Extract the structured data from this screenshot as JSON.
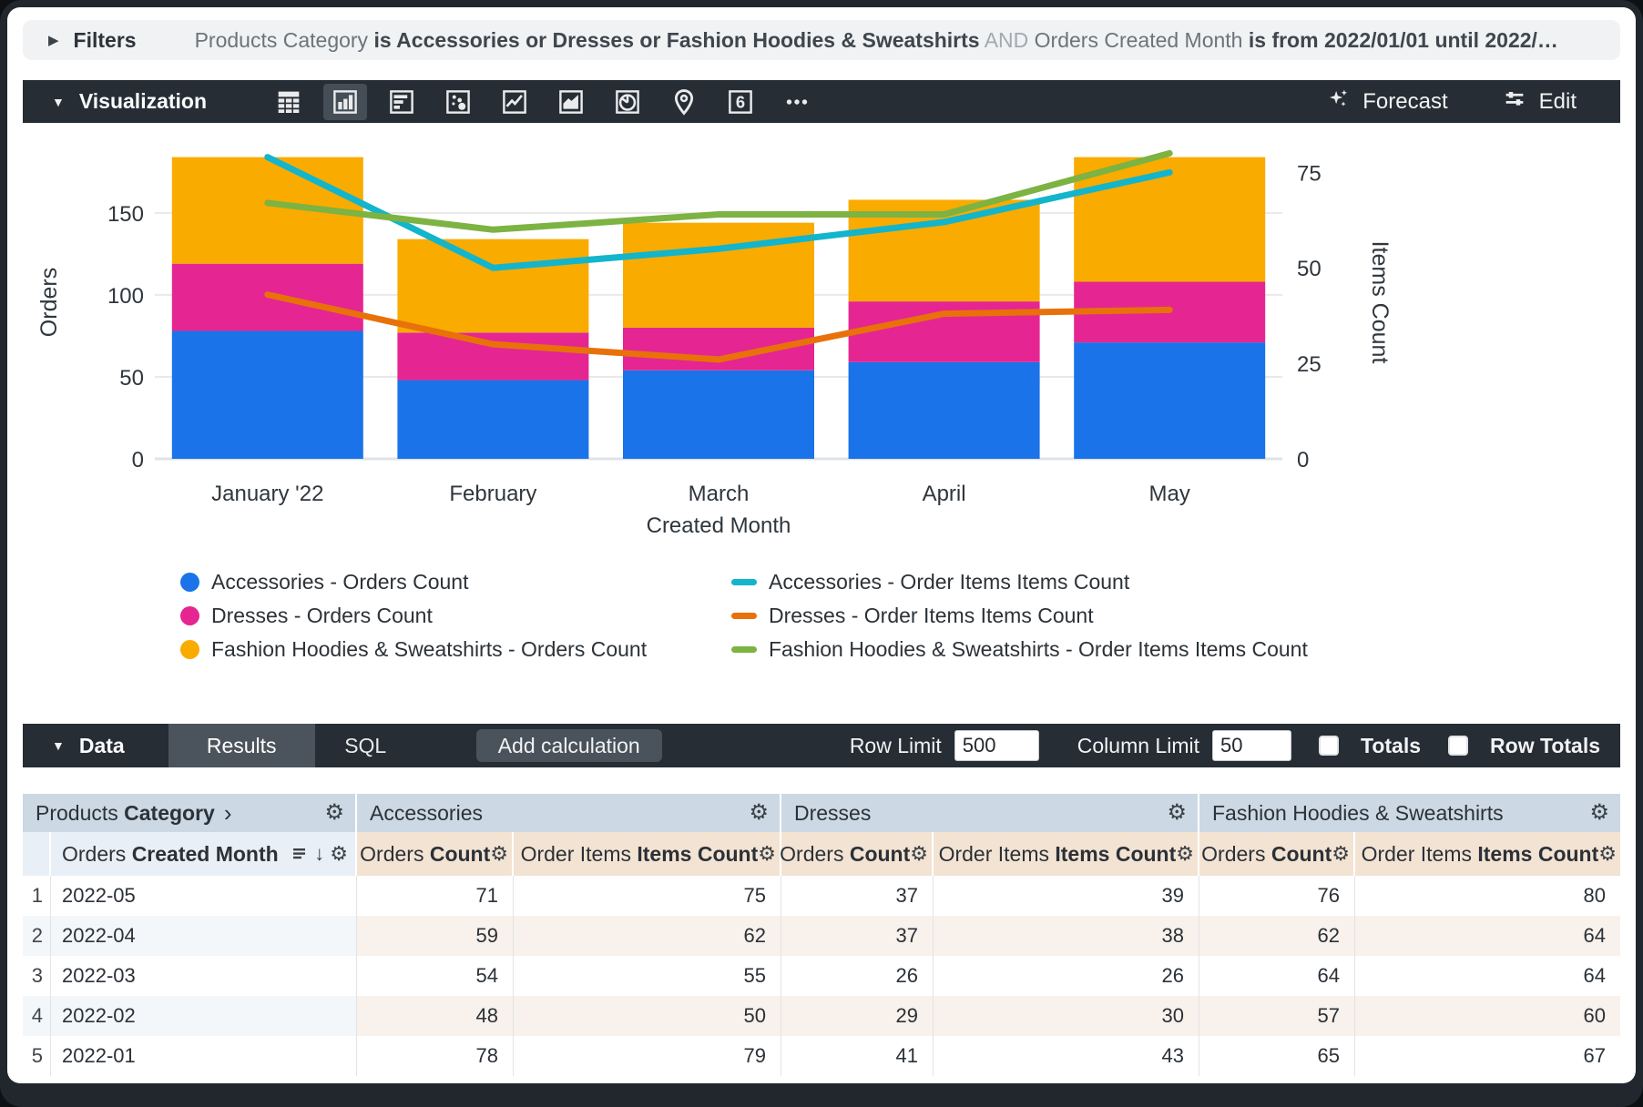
{
  "filters": {
    "label": "Filters",
    "segments": [
      {
        "text": "Products Category",
        "style": "regular"
      },
      {
        "text": "is Accessories or Dresses or Fashion Hoodies & Sweatshirts",
        "style": "bold"
      },
      {
        "text": "AND",
        "style": "muted"
      },
      {
        "text": "Orders Created Month",
        "style": "regular"
      },
      {
        "text": "is from 2022/01/01 until 2022/…",
        "style": "bold"
      }
    ]
  },
  "visualization": {
    "label": "Visualization",
    "icons": [
      {
        "name": "table-chart-icon",
        "type": "table",
        "selected": false
      },
      {
        "name": "column-chart-icon",
        "type": "column",
        "selected": true
      },
      {
        "name": "bar-chart-icon",
        "type": "hbar",
        "selected": false
      },
      {
        "name": "scatter-chart-icon",
        "type": "scatter",
        "selected": false
      },
      {
        "name": "line-chart-icon",
        "type": "line",
        "selected": false
      },
      {
        "name": "area-chart-icon",
        "type": "area",
        "selected": false
      },
      {
        "name": "pie-chart-icon",
        "type": "pie",
        "selected": false
      },
      {
        "name": "map-chart-icon",
        "type": "pin",
        "selected": false
      },
      {
        "name": "single-value-icon",
        "type": "value",
        "glyph": "6",
        "selected": false
      },
      {
        "name": "more-viz-options-icon",
        "type": "more",
        "selected": false
      }
    ],
    "forecast_label": "Forecast",
    "edit_label": "Edit"
  },
  "chart_data": {
    "type": "combo-stacked-bar-line",
    "categories": [
      "January '22",
      "February",
      "March",
      "April",
      "May"
    ],
    "bar_series": [
      {
        "name": "Accessories - Orders Count",
        "color": "#1A73E8",
        "axis": "left",
        "values": [
          78,
          48,
          54,
          59,
          71
        ]
      },
      {
        "name": "Dresses - Orders Count",
        "color": "#E52592",
        "axis": "left",
        "values": [
          41,
          29,
          26,
          37,
          37
        ]
      },
      {
        "name": "Fashion Hoodies & Sweatshirts - Orders Count",
        "color": "#F9AB00",
        "axis": "left",
        "values": [
          65,
          57,
          64,
          62,
          76
        ]
      }
    ],
    "line_series": [
      {
        "name": "Accessories - Order Items Items Count",
        "color": "#12B5CB",
        "axis": "right",
        "values": [
          79,
          50,
          55,
          62,
          75
        ]
      },
      {
        "name": "Dresses - Order Items Items Count",
        "color": "#E8710A",
        "axis": "right",
        "values": [
          43,
          30,
          26,
          38,
          39
        ]
      },
      {
        "name": "Fashion Hoodies & Sweatshirts - Order Items Items Count",
        "color": "#7CB342",
        "axis": "right",
        "values": [
          67,
          60,
          64,
          64,
          80
        ]
      }
    ],
    "left_axis": {
      "title": "Orders",
      "ticks": [
        0,
        50,
        100,
        150
      ],
      "max": 191
    },
    "right_axis": {
      "title": "Items Count",
      "ticks": [
        0,
        25,
        50,
        75
      ],
      "max": 82
    },
    "x_axis": {
      "title": "Created Month"
    },
    "stacked": true,
    "grid": true,
    "legend_position": "bottom"
  },
  "data_panel": {
    "label": "Data",
    "tabs": [
      {
        "label": "Results",
        "active": true
      },
      {
        "label": "SQL",
        "active": false
      }
    ],
    "add_calculation_label": "Add calculation",
    "row_limit_label": "Row Limit",
    "row_limit_value": "500",
    "column_limit_label": "Column Limit",
    "column_limit_value": "50",
    "totals_label": "Totals",
    "totals_checked": false,
    "row_totals_label": "Row Totals",
    "row_totals_checked": false
  },
  "table": {
    "groups": [
      {
        "regular": "Products",
        "bold": "Category",
        "chevron": "›"
      },
      {
        "regular": "Accessories",
        "bold": ""
      },
      {
        "regular": "Dresses",
        "bold": ""
      },
      {
        "regular": "Fashion Hoodies & Sweatshirts",
        "bold": ""
      }
    ],
    "dimension_header": {
      "regular": "Orders",
      "bold": "Created Month"
    },
    "measure_headers": [
      {
        "regular": "Orders",
        "bold": "Count"
      },
      {
        "regular": "Order Items",
        "bold": "Items Count"
      }
    ],
    "rows": [
      {
        "index": "1",
        "month": "2022-05",
        "values": [
          "71",
          "75",
          "37",
          "39",
          "76",
          "80"
        ]
      },
      {
        "index": "2",
        "month": "2022-04",
        "values": [
          "59",
          "62",
          "37",
          "38",
          "62",
          "64"
        ]
      },
      {
        "index": "3",
        "month": "2022-03",
        "values": [
          "54",
          "55",
          "26",
          "26",
          "64",
          "64"
        ]
      },
      {
        "index": "4",
        "month": "2022-02",
        "values": [
          "48",
          "50",
          "29",
          "30",
          "57",
          "60"
        ]
      },
      {
        "index": "5",
        "month": "2022-01",
        "values": [
          "78",
          "79",
          "41",
          "43",
          "65",
          "67"
        ]
      }
    ]
  }
}
